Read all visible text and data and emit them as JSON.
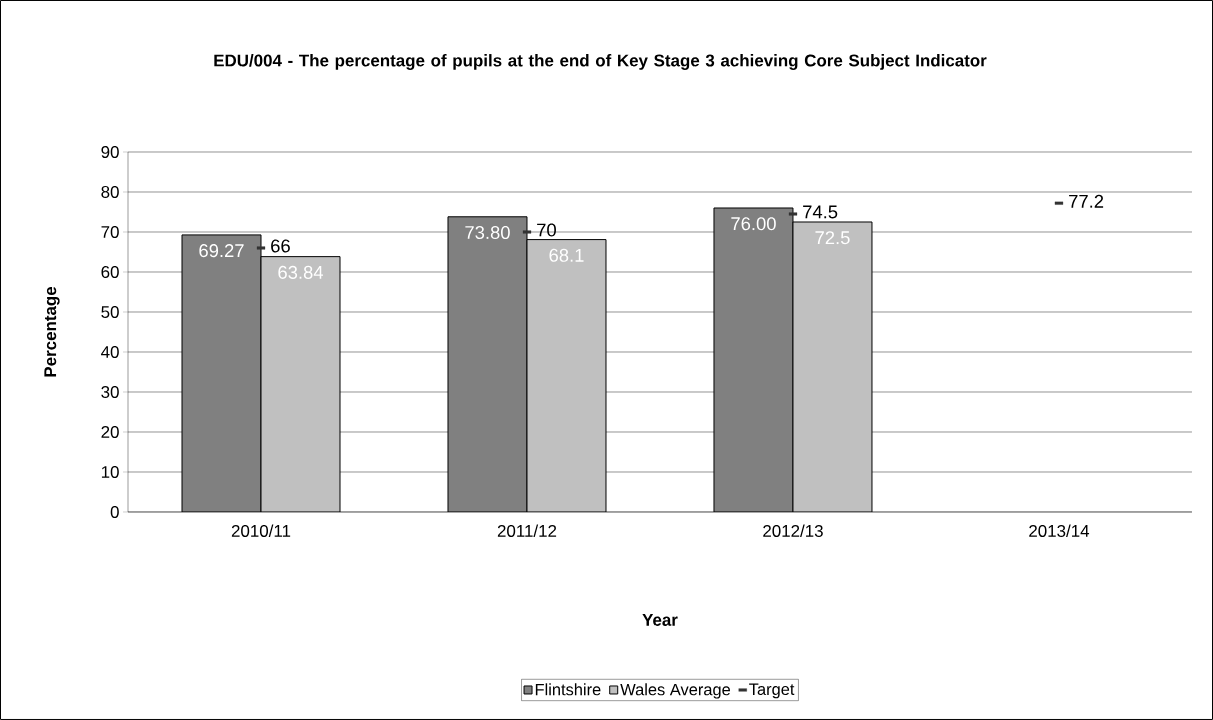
{
  "chart_data": {
    "type": "bar",
    "title": "EDU/004 - The percentage of pupils at the end of Key Stage 3 achieving Core Subject Indicator",
    "xlabel": "Year",
    "ylabel": "Percentage",
    "categories": [
      "2010/11",
      "2011/12",
      "2012/13",
      "2013/14"
    ],
    "series": [
      {
        "name": "Flintshire",
        "color": "#808080",
        "values": [
          69.27,
          73.8,
          76.0,
          null
        ],
        "value_labels": [
          "69.27",
          "73.80",
          "76.00",
          null
        ]
      },
      {
        "name": "Wales Average",
        "color": "#c0c0c0",
        "values": [
          63.84,
          68.1,
          72.5,
          null
        ],
        "value_labels": [
          "63.84",
          "68.1",
          "72.5",
          null
        ]
      },
      {
        "name": "Target",
        "type": "scatter",
        "color": "#333333",
        "values": [
          66,
          70,
          74.5,
          77.2
        ],
        "value_labels": [
          "66",
          "70",
          "74.5",
          "77.2"
        ]
      }
    ],
    "ylim": [
      0,
      90
    ],
    "yticks": [
      0,
      10,
      20,
      30,
      40,
      50,
      60,
      70,
      80,
      90
    ],
    "grid": "y",
    "legend": "bottom"
  }
}
